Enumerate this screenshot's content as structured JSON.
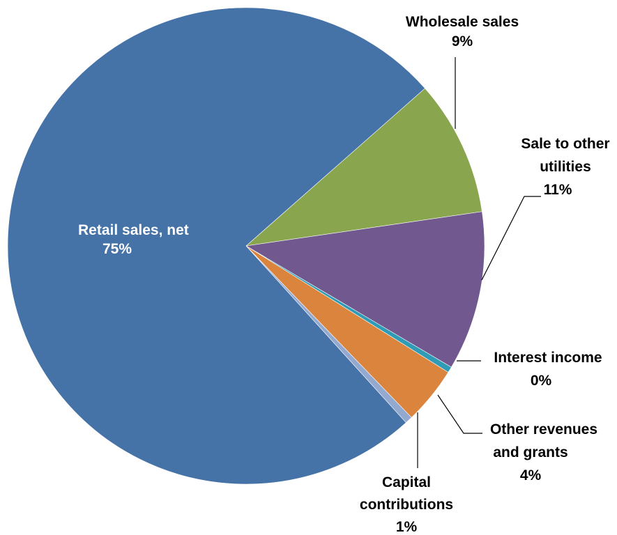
{
  "chart_data": {
    "type": "pie",
    "title": "",
    "slices": [
      {
        "name": "Retail sales, net",
        "value": 75.2,
        "label": "75%",
        "color": "#4572A7"
      },
      {
        "name": "Wholesale sales",
        "value": 9.2,
        "label": "9%",
        "color": "#89A54E"
      },
      {
        "name": "Sale to other utilities",
        "value": 10.8,
        "label": "11%",
        "color": "#71588F"
      },
      {
        "name": "Interest income",
        "value": 0.4,
        "label": "0%",
        "color": "#2F9BB5"
      },
      {
        "name": "Other revenues and grants",
        "value": 3.9,
        "label": "4%",
        "color": "#DB843D"
      },
      {
        "name": "Capital contributions",
        "value": 0.5,
        "label": "1%",
        "color": "#93A9CF"
      }
    ],
    "labels": {
      "retail": {
        "line1": "Retail sales, net",
        "pct": "75%"
      },
      "wholesale": {
        "line1": "Wholesale sales",
        "pct": "9%"
      },
      "utilities": {
        "line1": "Sale to other",
        "line2": "utilities",
        "pct": "11%"
      },
      "interest": {
        "line1": "Interest income",
        "pct": "0%"
      },
      "other": {
        "line1": "Other revenues",
        "line2": "and grants",
        "pct": "4%"
      },
      "capital": {
        "line1": "Capital",
        "line2": "contributions",
        "pct": "1%"
      }
    }
  }
}
